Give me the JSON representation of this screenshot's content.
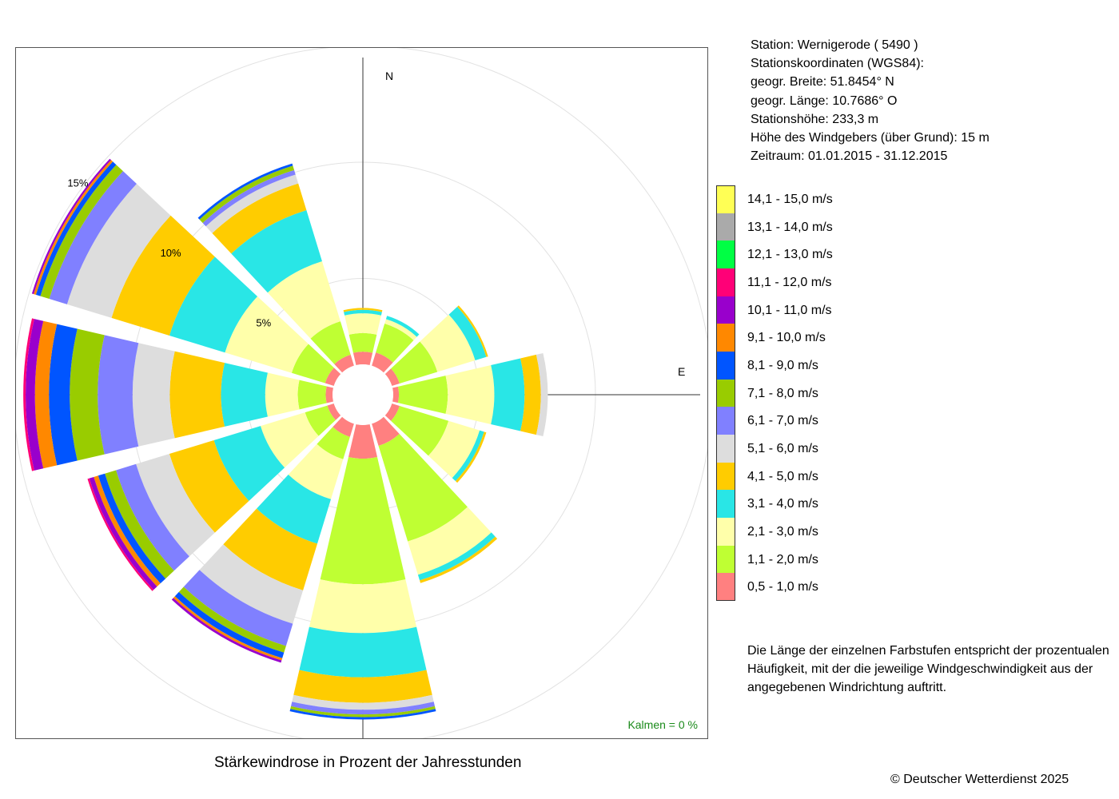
{
  "header": {
    "station": "Station:  Wernigerode  ( 5490 )",
    "coords_title": "Stationskoordinaten (WGS84):",
    "latitude": "geogr. Breite: 51.8454° N",
    "longitude": "geogr. Länge: 10.7686° O",
    "elevation": "Stationshöhe: 233,3 m",
    "sensor_height": "Höhe des Windgebers (über Grund): 15 m",
    "period": "Zeitraum: 01.01.2015 - 31.12.2015"
  },
  "explanation": {
    "line1": "Die Länge der einzelnen Farbstufen entspricht der prozentualen",
    "line2": "Häufigkeit, mit der die jeweilige Windgeschwindigkeit aus der",
    "line3": "angegebenen Windrichtung auftritt."
  },
  "footer": {
    "copyright": "© Deutscher Wetterdienst  2025"
  },
  "chart_data": {
    "type": "wind-rose",
    "title": "Stärkewindrose in Prozent der Jahresstunden",
    "calm_note": "Kalmen  =  0 %",
    "compass_labels": {
      "north": "N",
      "east": "E"
    },
    "rings": [
      {
        "value": 5,
        "label": "5%"
      },
      {
        "value": 10,
        "label": "10%"
      },
      {
        "value": 15,
        "label": "15%"
      }
    ],
    "center_hole_percent": 1.3,
    "sector_width_deg": 26,
    "classes": [
      {
        "label": "0,5 - 1,0 m/s",
        "color": "#ff8080"
      },
      {
        "label": "1,1 - 2,0 m/s",
        "color": "#bfff33"
      },
      {
        "label": "2,1 - 3,0 m/s",
        "color": "#ffffaa"
      },
      {
        "label": "3,1 - 4,0 m/s",
        "color": "#29e6e6"
      },
      {
        "label": "4,1 - 5,0 m/s",
        "color": "#ffcc00"
      },
      {
        "label": "5,1 - 6,0 m/s",
        "color": "#dddddd"
      },
      {
        "label": "6,1 - 7,0 m/s",
        "color": "#8080ff"
      },
      {
        "label": "7,1 - 8,0 m/s",
        "color": "#99cc00"
      },
      {
        "label": "8,1 - 9,0 m/s",
        "color": "#0055ff"
      },
      {
        "label": "9,1 - 10,0 m/s",
        "color": "#ff8800"
      },
      {
        "label": "10,1 - 11,0 m/s",
        "color": "#9900cc"
      },
      {
        "label": "11,1 - 12,0 m/s",
        "color": "#ff0077"
      },
      {
        "label": "12,1 - 13,0 m/s",
        "color": "#00ff44"
      },
      {
        "label": "13,1 - 14,0 m/s",
        "color": "#aaaaaa"
      },
      {
        "label": "14,1 - 15,0 m/s",
        "color": "#ffff55"
      }
    ],
    "directions": [
      {
        "deg": 0,
        "values": [
          0.55,
          0.8,
          0.85,
          0.15,
          0.08
        ]
      },
      {
        "deg": 30,
        "values": [
          0.6,
          1.3,
          0.2,
          0.15
        ]
      },
      {
        "deg": 60,
        "values": [
          0.35,
          1.7,
          1.7,
          0.5,
          0.08
        ]
      },
      {
        "deg": 90,
        "values": [
          0.25,
          2.1,
          2.0,
          1.3,
          0.7,
          0.3
        ]
      },
      {
        "deg": 120,
        "values": [
          0.35,
          2.2,
          1.4,
          0.2,
          0.1
        ]
      },
      {
        "deg": 150,
        "values": [
          1.0,
          4.3,
          1.5,
          0.25,
          0.12
        ]
      },
      {
        "deg": 180,
        "values": [
          1.45,
          5.4,
          2.1,
          1.9,
          1.1,
          0.3,
          0.2,
          0.12,
          0.1
        ]
      },
      {
        "deg": 210,
        "values": [
          0.6,
          1.0,
          1.8,
          2.0,
          2.1,
          1.5,
          1.0,
          0.3,
          0.25,
          0.1,
          0.1
        ]
      },
      {
        "deg": 240,
        "values": [
          0.3,
          1.0,
          2.0,
          2.1,
          2.0,
          1.5,
          0.9,
          0.5,
          0.3,
          0.2,
          0.2,
          0.08
        ]
      },
      {
        "deg": 270,
        "values": [
          0.3,
          1.2,
          1.4,
          1.9,
          2.2,
          1.6,
          1.5,
          1.2,
          0.9,
          0.6,
          0.4,
          0.1
        ]
      },
      {
        "deg": 300,
        "values": [
          0.4,
          1.5,
          3.0,
          2.5,
          2.6,
          2.0,
          0.8,
          0.4,
          0.2,
          0.1,
          0.08
        ]
      },
      {
        "deg": 330,
        "values": [
          0.5,
          1.5,
          2.7,
          2.3,
          1.2,
          0.4,
          0.2,
          0.2,
          0.1
        ]
      }
    ]
  }
}
